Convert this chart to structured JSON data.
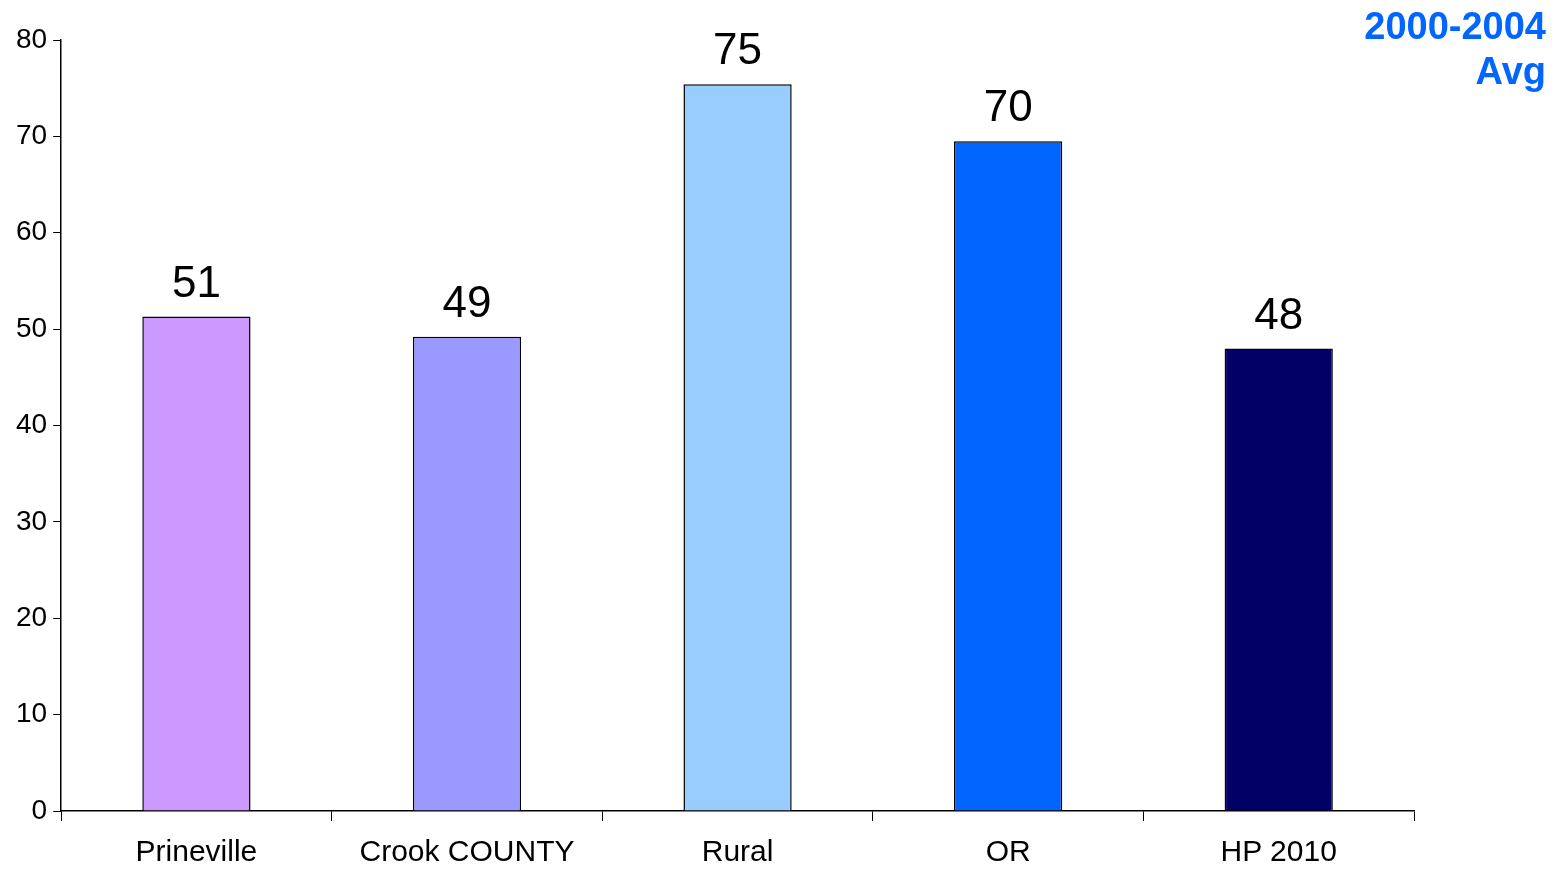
{
  "chart_data": {
    "type": "bar",
    "title": "2000-2004 Avg",
    "categories": [
      "Prineville",
      "Crook COUNTY",
      "Rural",
      "OR",
      "HP 2010"
    ],
    "values": [
      51.3,
      49.2,
      75.4,
      69.5,
      48.0
    ],
    "colors": [
      "#cc99ff",
      "#9999ff",
      "#99ccff",
      "#0066ff",
      "#000066"
    ],
    "value_labels": [
      "51",
      "49",
      "75",
      "70",
      "48"
    ],
    "ylim": [
      0,
      80
    ],
    "yticks": [
      0,
      10,
      20,
      30,
      40,
      50,
      60,
      70,
      80
    ]
  }
}
